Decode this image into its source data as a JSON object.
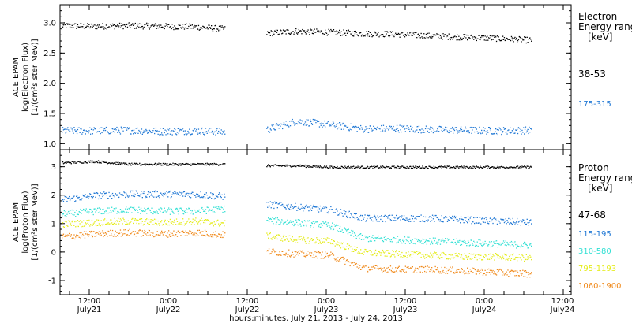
{
  "chart_data": [
    {
      "type": "scatter",
      "panel": "electron",
      "ylabel_lines": [
        "ACE EPAM",
        "log(Electron Flux)",
        "[1/(cm²s ster MeV)]"
      ],
      "ylim": [
        0.9,
        3.3
      ],
      "yticks": [
        1.0,
        1.5,
        2.0,
        2.5,
        3.0
      ],
      "ytick_labels": [
        "1.0",
        "1.5",
        "2.0",
        "2.5",
        "3.0"
      ],
      "legend_title_lines": [
        "Electron",
        "Energy range",
        "[keV]"
      ],
      "series": [
        {
          "name": "38-53",
          "color": "#000000",
          "gap": [
            1.0,
            1.2
          ],
          "x": [
            0.0,
            0.2,
            0.4,
            0.6,
            0.8,
            1.0,
            1.2,
            1.4,
            1.6,
            1.8,
            2.0,
            2.2,
            2.4,
            2.6,
            2.8
          ],
          "y": [
            2.96,
            2.95,
            2.96,
            2.95,
            2.94,
            2.9,
            2.83,
            2.87,
            2.85,
            2.83,
            2.82,
            2.79,
            2.77,
            2.75,
            2.72
          ]
        },
        {
          "name": "175-315",
          "color": "#1f77d4",
          "gap": [
            1.0,
            1.2
          ],
          "x": [
            0.0,
            0.2,
            0.4,
            0.6,
            0.8,
            1.0,
            1.2,
            1.4,
            1.6,
            1.8,
            2.0,
            2.2,
            2.4,
            2.6,
            2.8
          ],
          "y": [
            1.22,
            1.22,
            1.23,
            1.21,
            1.22,
            1.2,
            1.22,
            1.38,
            1.32,
            1.25,
            1.26,
            1.24,
            1.23,
            1.22,
            1.23
          ]
        }
      ]
    },
    {
      "type": "scatter",
      "panel": "proton",
      "ylabel_lines": [
        "ACE EPAM",
        "log(Proton Flux)",
        "[1/(cm²s ster MeV)]"
      ],
      "ylim": [
        -1.5,
        3.6
      ],
      "yticks": [
        -1,
        0,
        1,
        2,
        3
      ],
      "ytick_labels": [
        "-1",
        "0",
        "1",
        "2",
        "3"
      ],
      "legend_title_lines": [
        "Proton",
        "Energy range",
        "[keV]"
      ],
      "series": [
        {
          "name": "47-68",
          "color": "#000000",
          "gap": [
            1.0,
            1.2
          ],
          "x": [
            0.0,
            0.2,
            0.4,
            0.6,
            0.8,
            1.0,
            1.2,
            1.4,
            1.6,
            1.8,
            2.0,
            2.2,
            2.4,
            2.6,
            2.8
          ],
          "y": [
            3.15,
            3.2,
            3.1,
            3.1,
            3.1,
            3.1,
            3.05,
            3.05,
            3.0,
            3.0,
            3.0,
            3.0,
            3.0,
            3.0,
            3.0
          ]
        },
        {
          "name": "115-195",
          "color": "#1f77d4",
          "gap": [
            1.0,
            1.2
          ],
          "x": [
            0.0,
            0.2,
            0.4,
            0.6,
            0.8,
            1.0,
            1.2,
            1.4,
            1.6,
            1.8,
            2.0,
            2.2,
            2.4,
            2.6,
            2.8
          ],
          "y": [
            1.85,
            2.0,
            2.05,
            2.05,
            2.05,
            1.95,
            1.7,
            1.6,
            1.5,
            1.2,
            1.2,
            1.2,
            1.15,
            1.1,
            1.05
          ]
        },
        {
          "name": "310-580",
          "color": "#33e0d4",
          "gap": [
            1.0,
            1.2
          ],
          "x": [
            0.0,
            0.2,
            0.4,
            0.6,
            0.8,
            1.0,
            1.2,
            1.4,
            1.6,
            1.8,
            2.0,
            2.2,
            2.4,
            2.6,
            2.8
          ],
          "y": [
            1.35,
            1.45,
            1.5,
            1.45,
            1.45,
            1.55,
            1.15,
            1.05,
            0.95,
            0.5,
            0.45,
            0.4,
            0.35,
            0.3,
            0.25
          ]
        },
        {
          "name": "795-1193",
          "color": "#e4ec1a",
          "gap": [
            1.0,
            1.2
          ],
          "x": [
            0.0,
            0.2,
            0.4,
            0.6,
            0.8,
            1.0,
            1.2,
            1.4,
            1.6,
            1.8,
            2.0,
            2.2,
            2.4,
            2.6,
            2.8
          ],
          "y": [
            1.0,
            1.05,
            1.1,
            1.05,
            1.1,
            1.0,
            0.6,
            0.45,
            0.4,
            0.0,
            -0.05,
            -0.1,
            -0.15,
            -0.15,
            -0.2
          ]
        },
        {
          "name": "1060-1900",
          "color": "#f08a1c",
          "gap": [
            1.0,
            1.2
          ],
          "x": [
            0.0,
            0.2,
            0.4,
            0.6,
            0.8,
            1.0,
            1.2,
            1.4,
            1.6,
            1.8,
            2.0,
            2.2,
            2.4,
            2.6,
            2.8
          ],
          "y": [
            0.55,
            0.65,
            0.7,
            0.65,
            0.7,
            0.6,
            0.05,
            -0.05,
            -0.1,
            -0.55,
            -0.6,
            -0.6,
            -0.65,
            -0.7,
            -0.75
          ]
        }
      ]
    }
  ],
  "x_axis": {
    "title": "hours:minutes, July 21, 2013 - July 24, 2013",
    "ticks": [
      {
        "time": "12:00",
        "date": "July21"
      },
      {
        "time": "0:00",
        "date": "July22"
      },
      {
        "time": "12:00",
        "date": "July22"
      },
      {
        "time": "0:00",
        "date": "July23"
      },
      {
        "time": "12:00",
        "date": "July23"
      },
      {
        "time": "0:00",
        "date": "July24"
      },
      {
        "time": "12:00",
        "date": "July24"
      }
    ]
  }
}
